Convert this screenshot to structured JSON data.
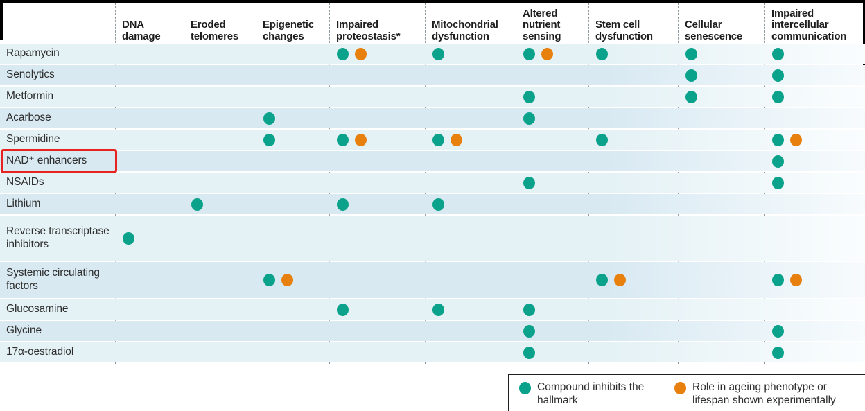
{
  "colors": {
    "teal": "#0aa28b",
    "orange": "#e8800e",
    "red": "#e8231d",
    "row_odd": "#e4f1f5",
    "row_even": "#d8e9f2"
  },
  "chart_data": {
    "type": "matrix",
    "title": "",
    "columns": [
      "DNA damage",
      "Eroded telomeres",
      "Epigenetic changes",
      "Impaired proteostasis*",
      "Mitochondrial dysfunction",
      "Altered nutrient sensing",
      "Stem cell dysfunction",
      "Cellular senescence",
      "Impaired intercellular communication"
    ],
    "rows": [
      "Rapamycin",
      "Senolytics",
      "Metformin",
      "Acarbose",
      "Spermidine",
      "NAD⁺ enhancers",
      "NSAIDs",
      "Lithium",
      "Reverse transcriptase inhibitors",
      "Systemic circulating factors",
      "Glucosamine",
      "Glycine",
      "17α-oestradiol"
    ],
    "highlighted_row": "NAD⁺ enhancers",
    "marks": [
      {
        "row": "Rapamycin",
        "col": "Impaired proteostasis*",
        "types": [
          "inhibits",
          "experimental"
        ]
      },
      {
        "row": "Rapamycin",
        "col": "Mitochondrial dysfunction",
        "types": [
          "inhibits"
        ]
      },
      {
        "row": "Rapamycin",
        "col": "Altered nutrient sensing",
        "types": [
          "inhibits",
          "experimental"
        ]
      },
      {
        "row": "Rapamycin",
        "col": "Stem cell dysfunction",
        "types": [
          "inhibits"
        ]
      },
      {
        "row": "Rapamycin",
        "col": "Cellular senescence",
        "types": [
          "inhibits"
        ]
      },
      {
        "row": "Rapamycin",
        "col": "Impaired intercellular communication",
        "types": [
          "inhibits"
        ]
      },
      {
        "row": "Senolytics",
        "col": "Cellular senescence",
        "types": [
          "inhibits"
        ]
      },
      {
        "row": "Senolytics",
        "col": "Impaired intercellular communication",
        "types": [
          "inhibits"
        ]
      },
      {
        "row": "Metformin",
        "col": "Altered nutrient sensing",
        "types": [
          "inhibits"
        ]
      },
      {
        "row": "Metformin",
        "col": "Cellular senescence",
        "types": [
          "inhibits"
        ]
      },
      {
        "row": "Metformin",
        "col": "Impaired intercellular communication",
        "types": [
          "inhibits"
        ]
      },
      {
        "row": "Acarbose",
        "col": "Epigenetic changes",
        "types": [
          "inhibits"
        ]
      },
      {
        "row": "Acarbose",
        "col": "Altered nutrient sensing",
        "types": [
          "inhibits"
        ]
      },
      {
        "row": "Spermidine",
        "col": "Epigenetic changes",
        "types": [
          "inhibits"
        ]
      },
      {
        "row": "Spermidine",
        "col": "Impaired proteostasis*",
        "types": [
          "inhibits",
          "experimental"
        ]
      },
      {
        "row": "Spermidine",
        "col": "Mitochondrial dysfunction",
        "types": [
          "inhibits",
          "experimental"
        ]
      },
      {
        "row": "Spermidine",
        "col": "Stem cell dysfunction",
        "types": [
          "inhibits"
        ]
      },
      {
        "row": "Spermidine",
        "col": "Impaired intercellular communication",
        "types": [
          "inhibits",
          "experimental"
        ]
      },
      {
        "row": "NAD⁺ enhancers",
        "col": "Impaired intercellular communication",
        "types": [
          "inhibits"
        ]
      },
      {
        "row": "NSAIDs",
        "col": "Altered nutrient sensing",
        "types": [
          "inhibits"
        ]
      },
      {
        "row": "NSAIDs",
        "col": "Impaired intercellular communication",
        "types": [
          "inhibits"
        ]
      },
      {
        "row": "Lithium",
        "col": "Eroded telomeres",
        "types": [
          "inhibits"
        ]
      },
      {
        "row": "Lithium",
        "col": "Impaired proteostasis*",
        "types": [
          "inhibits"
        ]
      },
      {
        "row": "Lithium",
        "col": "Mitochondrial dysfunction",
        "types": [
          "inhibits"
        ]
      },
      {
        "row": "Reverse transcriptase inhibitors",
        "col": "DNA damage",
        "types": [
          "inhibits"
        ]
      },
      {
        "row": "Systemic circulating factors",
        "col": "Epigenetic changes",
        "types": [
          "inhibits",
          "experimental"
        ]
      },
      {
        "row": "Systemic circulating factors",
        "col": "Stem cell dysfunction",
        "types": [
          "inhibits",
          "experimental"
        ]
      },
      {
        "row": "Systemic circulating factors",
        "col": "Impaired intercellular communication",
        "types": [
          "inhibits",
          "experimental"
        ]
      },
      {
        "row": "Glucosamine",
        "col": "Impaired proteostasis*",
        "types": [
          "inhibits"
        ]
      },
      {
        "row": "Glucosamine",
        "col": "Mitochondrial dysfunction",
        "types": [
          "inhibits"
        ]
      },
      {
        "row": "Glucosamine",
        "col": "Altered nutrient sensing",
        "types": [
          "inhibits"
        ]
      },
      {
        "row": "Glycine",
        "col": "Altered nutrient sensing",
        "types": [
          "inhibits"
        ]
      },
      {
        "row": "Glycine",
        "col": "Impaired intercellular communication",
        "types": [
          "inhibits"
        ]
      },
      {
        "row": "17α-oestradiol",
        "col": "Altered nutrient sensing",
        "types": [
          "inhibits"
        ]
      },
      {
        "row": "17α-oestradiol",
        "col": "Impaired intercellular communication",
        "types": [
          "inhibits"
        ]
      }
    ],
    "legend": {
      "items": [
        {
          "color_key": "teal",
          "label": "Compound inhibits the hallmark"
        },
        {
          "color_key": "orange",
          "label": "Role in ageing phenotype or lifespan shown experimentally"
        }
      ],
      "position": "bottom-right"
    },
    "grid": "dashed-vertical-column-separators",
    "notes": "Teal dot = compound inhibits the hallmark; orange dot = role in ageing phenotype or lifespan shown experimentally; red box highlights NAD⁺ enhancers row"
  }
}
